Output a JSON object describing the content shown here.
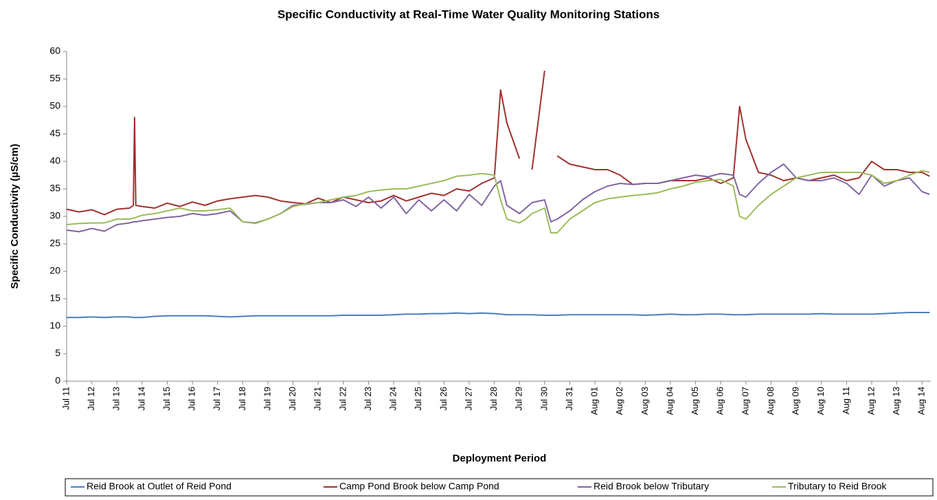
{
  "chart_data": {
    "type": "line",
    "title": "Specific Conductivity at Real-Time Water Quality Monitoring Stations",
    "x_label": "Deployment Period",
    "y_label": "Specific Conductivity  (µS/cm)",
    "x": [
      0,
      0.5,
      1,
      1.5,
      2,
      2.5,
      2.65,
      2.7,
      2.75,
      3,
      3.5,
      4,
      4.5,
      5,
      5.5,
      6,
      6.5,
      7,
      7.5,
      8,
      8.5,
      9,
      9.5,
      10,
      10.5,
      11,
      11.5,
      12,
      12.5,
      13,
      13.5,
      14,
      14.5,
      15,
      15.5,
      16,
      16.5,
      17,
      17.25,
      17.5,
      18,
      18.25,
      18.5,
      19,
      19.25,
      19.5,
      20,
      20.5,
      21,
      21.5,
      22,
      22.5,
      23,
      23.5,
      24,
      24.5,
      25,
      25.5,
      26,
      26.5,
      26.75,
      27,
      27.5,
      28,
      28.5,
      29,
      29.5,
      30,
      30.5,
      31,
      31.5,
      32,
      32.5,
      33,
      33.5,
      34,
      34.3
    ],
    "series": [
      {
        "name": "Reid Brook at Outlet of Reid Pond",
        "color": "#4a7ebb",
        "values": [
          11.6,
          11.6,
          11.7,
          11.6,
          11.7,
          11.7,
          11.6,
          11.6,
          11.6,
          11.6,
          11.8,
          11.9,
          11.9,
          11.9,
          11.9,
          11.8,
          11.7,
          11.8,
          11.9,
          11.9,
          11.9,
          11.9,
          11.9,
          11.9,
          11.9,
          12.0,
          12.0,
          12.0,
          12.0,
          12.1,
          12.2,
          12.2,
          12.3,
          12.3,
          12.4,
          12.3,
          12.4,
          12.3,
          12.2,
          12.1,
          12.1,
          12.1,
          12.1,
          12.0,
          12.0,
          12.0,
          12.1,
          12.1,
          12.1,
          12.1,
          12.1,
          12.1,
          12.0,
          12.1,
          12.2,
          12.1,
          12.1,
          12.2,
          12.2,
          12.1,
          12.1,
          12.1,
          12.2,
          12.2,
          12.2,
          12.2,
          12.2,
          12.3,
          12.2,
          12.2,
          12.2,
          12.2,
          12.3,
          12.4,
          12.5,
          12.5,
          12.5
        ]
      },
      {
        "name": "Camp Pond Brook below Camp Pond",
        "color": "#a0302d",
        "values": [
          31.3,
          30.8,
          31.2,
          30.3,
          31.3,
          31.5,
          32,
          48,
          32,
          31.8,
          31.5,
          32.4,
          31.8,
          32.6,
          32,
          32.8,
          33.2,
          33.5,
          33.8,
          33.5,
          32.8,
          32.5,
          32.3,
          33.3,
          32.5,
          33.5,
          33,
          32.5,
          32.8,
          33.8,
          32.8,
          33.5,
          34.2,
          33.8,
          35,
          34.6,
          36,
          37,
          53,
          47,
          40.5,
          null,
          38.5,
          56.5,
          null,
          41,
          39.5,
          39,
          38.5,
          38.5,
          37.5,
          35.8,
          36,
          36,
          36.5,
          36.5,
          36.5,
          37,
          36,
          37,
          50,
          44,
          38,
          37.5,
          36.5,
          37,
          36.5,
          37,
          37.5,
          36.5,
          37,
          40,
          38.5,
          38.5,
          38,
          38,
          37.3
        ]
      },
      {
        "name": "Reid Brook below Tributary",
        "color": "#8064a2",
        "values": [
          27.5,
          27.2,
          27.8,
          27.3,
          28.5,
          28.8,
          29,
          29,
          29,
          29.2,
          29.5,
          29.8,
          30,
          30.5,
          30.2,
          30.5,
          31,
          29,
          28.8,
          29.5,
          30.5,
          32,
          32.2,
          32.5,
          32.5,
          33,
          31.8,
          33.5,
          31.5,
          33.5,
          30.5,
          33,
          31,
          33,
          31,
          34,
          32,
          35.5,
          36.5,
          32,
          30.5,
          31.5,
          32.5,
          33,
          29,
          29.5,
          31,
          33,
          34.5,
          35.5,
          36,
          35.8,
          36,
          36,
          36.5,
          37,
          37.5,
          37.2,
          37.8,
          37.5,
          34,
          33.5,
          36,
          38,
          39.5,
          37,
          36.5,
          36.5,
          37,
          36,
          34,
          37.5,
          35.5,
          36.5,
          37,
          34.5,
          34
        ]
      },
      {
        "name": "Tributary to Reid Brook",
        "color": "#9bbb59",
        "values": [
          28.5,
          28.7,
          28.8,
          28.8,
          29.5,
          29.5,
          29.7,
          29.7,
          29.8,
          30.2,
          30.5,
          31,
          31.5,
          31,
          31,
          31.2,
          31.5,
          29,
          28.7,
          29.5,
          30.5,
          31.8,
          32.3,
          32.5,
          33,
          33.5,
          33.8,
          34.5,
          34.8,
          35,
          35,
          35.5,
          36,
          36.5,
          37.3,
          37.5,
          37.8,
          37.5,
          33,
          29.5,
          28.8,
          29.5,
          30.5,
          31.5,
          27,
          27,
          29.5,
          31,
          32.5,
          33.2,
          33.5,
          33.8,
          34,
          34.3,
          35,
          35.5,
          36.2,
          36.5,
          36.7,
          35.5,
          30,
          29.5,
          32,
          34,
          35.5,
          37,
          37.5,
          38,
          38,
          38,
          38,
          37.5,
          36,
          36.5,
          37.5,
          38.3,
          38
        ]
      }
    ],
    "xlim": [
      0,
      34.35
    ],
    "xticks": [
      {
        "value": 0,
        "label": "Jul 11"
      },
      {
        "value": 1,
        "label": "Jul 12"
      },
      {
        "value": 2,
        "label": "Jul 13"
      },
      {
        "value": 3,
        "label": "Jul 14"
      },
      {
        "value": 4,
        "label": "Jul 15"
      },
      {
        "value": 5,
        "label": "Jul 16"
      },
      {
        "value": 6,
        "label": "Jul 17"
      },
      {
        "value": 7,
        "label": "Jul 18"
      },
      {
        "value": 8,
        "label": "Jul 19"
      },
      {
        "value": 9,
        "label": "Jul 20"
      },
      {
        "value": 10,
        "label": "Jul 21"
      },
      {
        "value": 11,
        "label": "Jul 22"
      },
      {
        "value": 12,
        "label": "Jul 23"
      },
      {
        "value": 13,
        "label": "Jul 24"
      },
      {
        "value": 14,
        "label": "Jul 25"
      },
      {
        "value": 15,
        "label": "Jul 26"
      },
      {
        "value": 16,
        "label": "Jul 27"
      },
      {
        "value": 17,
        "label": "Jul 28"
      },
      {
        "value": 18,
        "label": "Jul 29"
      },
      {
        "value": 19,
        "label": "Jul 30"
      },
      {
        "value": 20,
        "label": "Jul 31"
      },
      {
        "value": 21,
        "label": "Aug 01"
      },
      {
        "value": 22,
        "label": "Aug 02"
      },
      {
        "value": 23,
        "label": "Aug 03"
      },
      {
        "value": 24,
        "label": "Aug 04"
      },
      {
        "value": 25,
        "label": "Aug 05"
      },
      {
        "value": 26,
        "label": "Aug 06"
      },
      {
        "value": 27,
        "label": "Aug 07"
      },
      {
        "value": 28,
        "label": "Aug 08"
      },
      {
        "value": 29,
        "label": "Aug 09"
      },
      {
        "value": 30,
        "label": "Aug 10"
      },
      {
        "value": 31,
        "label": "Aug 11"
      },
      {
        "value": 32,
        "label": "Aug 12"
      },
      {
        "value": 33,
        "label": "Aug 13"
      },
      {
        "value": 34,
        "label": "Aug 14"
      }
    ],
    "ylim": [
      0,
      60
    ],
    "yticks": [
      0,
      5,
      10,
      15,
      20,
      25,
      30,
      35,
      40,
      45,
      50,
      55,
      60
    ],
    "grid": false,
    "legend": "bottom"
  }
}
